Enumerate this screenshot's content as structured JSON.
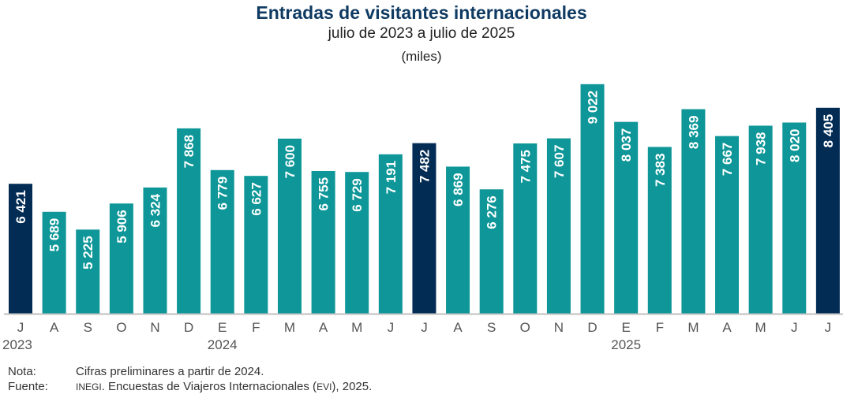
{
  "chart_data": {
    "type": "bar",
    "title": "Entradas de visitantes internacionales",
    "subtitle": "julio de 2023 a julio de 2025",
    "unit": "(miles)",
    "xlabel": "",
    "ylabel": "",
    "ylim": [
      3030,
      9100
    ],
    "grid": false,
    "legend": "none",
    "categories": [
      "J",
      "A",
      "S",
      "O",
      "N",
      "D",
      "E",
      "F",
      "M",
      "A",
      "M",
      "J",
      "J",
      "A",
      "S",
      "O",
      "N",
      "D",
      "E",
      "F",
      "M",
      "A",
      "M",
      "J",
      "J"
    ],
    "year_labels": [
      {
        "label": "2023",
        "index": 0
      },
      {
        "label": "2024",
        "index": 6
      },
      {
        "label": "2025",
        "index": 18
      }
    ],
    "values": [
      6421,
      5689,
      5225,
      5906,
      6324,
      7868,
      6779,
      6627,
      7600,
      6755,
      6729,
      7191,
      7482,
      6869,
      6276,
      7475,
      7607,
      9022,
      8037,
      7383,
      8369,
      7667,
      7938,
      8020,
      8405
    ],
    "data_labels": [
      "6 421",
      "5 689",
      "5 225",
      "5 906",
      "6 324",
      "7 868",
      "6 779",
      "6 627",
      "7 600",
      "6 755",
      "6 729",
      "7 191",
      "7 482",
      "6 869",
      "6 276",
      "7 475",
      "7 607",
      "9 022",
      "8 037",
      "7 383",
      "8 369",
      "7 667",
      "7 938",
      "8 020",
      "8 405"
    ],
    "highlighted_indices": [
      0,
      12,
      24
    ],
    "colors": {
      "bar": "#0e9698",
      "highlight": "#032c54",
      "label": "#ffffff",
      "axis": "#bfbfbf",
      "tick_text": "#555555"
    }
  },
  "notes": {
    "nota_label": "Nota:",
    "nota_text": "Cifras preliminares a partir de 2024.",
    "fuente_label": "Fuente:",
    "fuente_org": "INEGI",
    "fuente_text_1": ". Encuestas de Viajeros Internacionales (",
    "fuente_abbr": "EVI",
    "fuente_text_2": "), 2025."
  }
}
